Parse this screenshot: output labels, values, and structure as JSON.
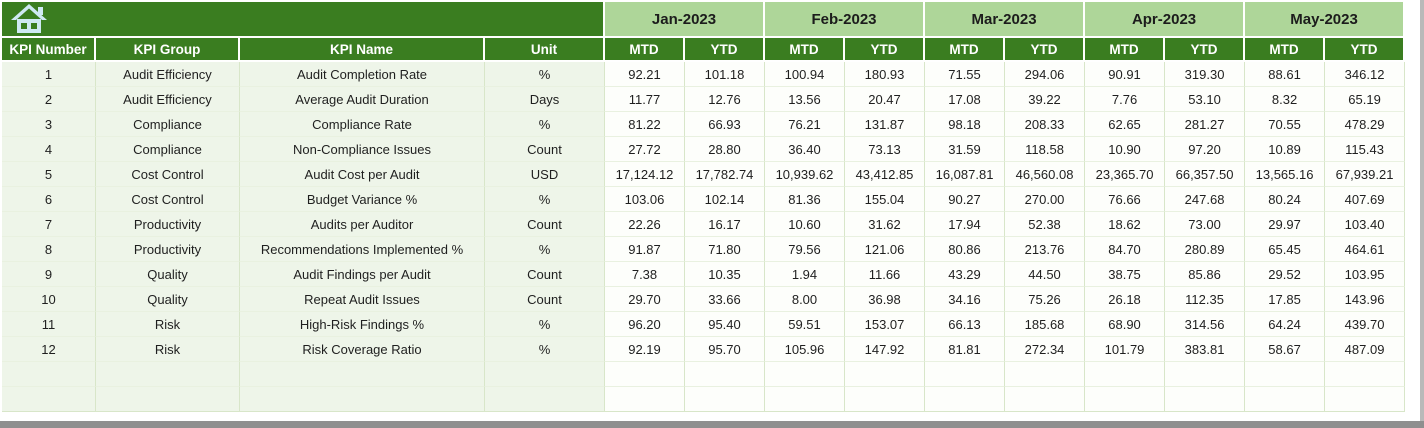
{
  "table": {
    "left_headers": [
      "KPI Number",
      "KPI Group",
      "KPI Name",
      "Unit"
    ],
    "months": [
      "Jan-2023",
      "Feb-2023",
      "Mar-2023",
      "Apr-2023",
      "May-2023"
    ],
    "period_labels": [
      "MTD",
      "YTD"
    ],
    "rows": [
      {
        "number": "1",
        "group": "Audit Efficiency",
        "name": "Audit Completion Rate",
        "unit": "%",
        "values": [
          "92.21",
          "101.18",
          "100.94",
          "180.93",
          "71.55",
          "294.06",
          "90.91",
          "319.30",
          "88.61",
          "346.12"
        ]
      },
      {
        "number": "2",
        "group": "Audit Efficiency",
        "name": "Average Audit Duration",
        "unit": "Days",
        "values": [
          "11.77",
          "12.76",
          "13.56",
          "20.47",
          "17.08",
          "39.22",
          "7.76",
          "53.10",
          "8.32",
          "65.19"
        ]
      },
      {
        "number": "3",
        "group": "Compliance",
        "name": "Compliance Rate",
        "unit": "%",
        "values": [
          "81.22",
          "66.93",
          "76.21",
          "131.87",
          "98.18",
          "208.33",
          "62.65",
          "281.27",
          "70.55",
          "478.29"
        ]
      },
      {
        "number": "4",
        "group": "Compliance",
        "name": "Non-Compliance Issues",
        "unit": "Count",
        "values": [
          "27.72",
          "28.80",
          "36.40",
          "73.13",
          "31.59",
          "118.58",
          "10.90",
          "97.20",
          "10.89",
          "115.43"
        ]
      },
      {
        "number": "5",
        "group": "Cost Control",
        "name": "Audit Cost per Audit",
        "unit": "USD",
        "values": [
          "17,124.12",
          "17,782.74",
          "10,939.62",
          "43,412.85",
          "16,087.81",
          "46,560.08",
          "23,365.70",
          "66,357.50",
          "13,565.16",
          "67,939.21"
        ]
      },
      {
        "number": "6",
        "group": "Cost Control",
        "name": "Budget Variance %",
        "unit": "%",
        "values": [
          "103.06",
          "102.14",
          "81.36",
          "155.04",
          "90.27",
          "270.00",
          "76.66",
          "247.68",
          "80.24",
          "407.69"
        ]
      },
      {
        "number": "7",
        "group": "Productivity",
        "name": "Audits per Auditor",
        "unit": "Count",
        "values": [
          "22.26",
          "16.17",
          "10.60",
          "31.62",
          "17.94",
          "52.38",
          "18.62",
          "73.00",
          "29.97",
          "103.40"
        ]
      },
      {
        "number": "8",
        "group": "Productivity",
        "name": "Recommendations Implemented %",
        "unit": "%",
        "values": [
          "91.87",
          "71.80",
          "79.56",
          "121.06",
          "80.86",
          "213.76",
          "84.70",
          "280.89",
          "65.45",
          "464.61"
        ]
      },
      {
        "number": "9",
        "group": "Quality",
        "name": "Audit Findings per Audit",
        "unit": "Count",
        "values": [
          "7.38",
          "10.35",
          "1.94",
          "11.66",
          "43.29",
          "44.50",
          "38.75",
          "85.86",
          "29.52",
          "103.95"
        ]
      },
      {
        "number": "10",
        "group": "Quality",
        "name": "Repeat Audit Issues",
        "unit": "Count",
        "values": [
          "29.70",
          "33.66",
          "8.00",
          "36.98",
          "34.16",
          "75.26",
          "26.18",
          "112.35",
          "17.85",
          "143.96"
        ]
      },
      {
        "number": "11",
        "group": "Risk",
        "name": "High-Risk Findings %",
        "unit": "%",
        "values": [
          "96.20",
          "95.40",
          "59.51",
          "153.07",
          "66.13",
          "185.68",
          "68.90",
          "314.56",
          "64.24",
          "439.70"
        ]
      },
      {
        "number": "12",
        "group": "Risk",
        "name": "Risk Coverage Ratio",
        "unit": "%",
        "values": [
          "92.19",
          "95.70",
          "105.96",
          "147.92",
          "81.81",
          "272.34",
          "101.79",
          "383.81",
          "58.67",
          "487.09"
        ]
      }
    ],
    "empty_row_count": 2
  },
  "icons": {
    "home": "home-icon"
  },
  "colors": {
    "header_green": "#3a7d20",
    "month_green": "#aed699",
    "row_tint": "#eef5e9",
    "cell_white": "#fdfefb",
    "grid_line": "#d8e6c9",
    "home_icon_blue": "#cfe9f3",
    "window_edge_gray": "#8f8f8f"
  }
}
